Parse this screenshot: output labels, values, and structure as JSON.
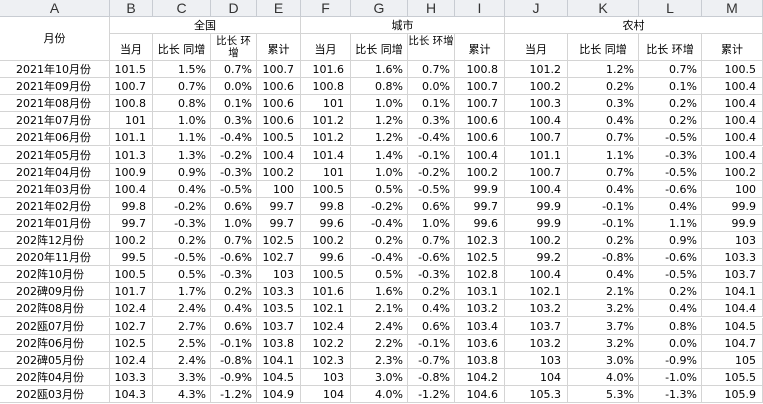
{
  "column_letters": [
    "A",
    "B",
    "C",
    "D",
    "E",
    "F",
    "G",
    "H",
    "I",
    "J",
    "K",
    "L",
    "M"
  ],
  "header": {
    "month": "月份",
    "groups": [
      "全国",
      "城市",
      "农村"
    ],
    "sub": [
      {
        "cur": "当月",
        "yoy": "比长 同增",
        "mom": "比长 环增",
        "cum": "累计"
      },
      {
        "cur": "当月",
        "yoy": "比长 同增",
        "mom": "比长 环增",
        "cum": "累计"
      },
      {
        "cur": "当月",
        "yoy": "比长 同增",
        "mom": "比长 环增",
        "cum": "累计"
      }
    ]
  },
  "rows": [
    [
      "2021年10月份",
      "101.5",
      "1.5%",
      "0.7%",
      "100.7",
      "101.6",
      "1.6%",
      "0.7%",
      "100.8",
      "101.2",
      "1.2%",
      "0.7%",
      "100.5"
    ],
    [
      "2021年09月份",
      "100.7",
      "0.7%",
      "0.0%",
      "100.6",
      "100.8",
      "0.8%",
      "0.0%",
      "100.7",
      "100.2",
      "0.2%",
      "0.1%",
      "100.4"
    ],
    [
      "2021年08月份",
      "100.8",
      "0.8%",
      "0.1%",
      "100.6",
      "101",
      "1.0%",
      "0.1%",
      "100.7",
      "100.3",
      "0.3%",
      "0.2%",
      "100.4"
    ],
    [
      "2021年07月份",
      "101",
      "1.0%",
      "0.3%",
      "100.6",
      "101.2",
      "1.2%",
      "0.3%",
      "100.6",
      "100.4",
      "0.4%",
      "0.2%",
      "100.4"
    ],
    [
      "2021年06月份",
      "101.1",
      "1.1%",
      "-0.4%",
      "100.5",
      "101.2",
      "1.2%",
      "-0.4%",
      "100.6",
      "100.7",
      "0.7%",
      "-0.5%",
      "100.4"
    ],
    [
      "2021年05月份",
      "101.3",
      "1.3%",
      "-0.2%",
      "100.4",
      "101.4",
      "1.4%",
      "-0.1%",
      "100.4",
      "101.1",
      "1.1%",
      "-0.3%",
      "100.4"
    ],
    [
      "2021年04月份",
      "100.9",
      "0.9%",
      "-0.3%",
      "100.2",
      "101",
      "1.0%",
      "-0.2%",
      "100.2",
      "100.7",
      "0.7%",
      "-0.5%",
      "100.2"
    ],
    [
      "2021年03月份",
      "100.4",
      "0.4%",
      "-0.5%",
      "100",
      "100.5",
      "0.5%",
      "-0.5%",
      "99.9",
      "100.4",
      "0.4%",
      "-0.6%",
      "100"
    ],
    [
      "2021年02月份",
      "99.8",
      "-0.2%",
      "0.6%",
      "99.7",
      "99.8",
      "-0.2%",
      "0.6%",
      "99.7",
      "99.9",
      "-0.1%",
      "0.4%",
      "99.9"
    ],
    [
      "2021年01月份",
      "99.7",
      "-0.3%",
      "1.0%",
      "99.7",
      "99.6",
      "-0.4%",
      "1.0%",
      "99.6",
      "99.9",
      "-0.1%",
      "1.1%",
      "99.9"
    ],
    [
      "202阵12月份",
      "100.2",
      "0.2%",
      "0.7%",
      "102.5",
      "100.2",
      "0.2%",
      "0.7%",
      "102.3",
      "100.2",
      "0.2%",
      "0.9%",
      "103"
    ],
    [
      "2020年11月份",
      "99.5",
      "-0.5%",
      "-0.6%",
      "102.7",
      "99.6",
      "-0.4%",
      "-0.6%",
      "102.5",
      "99.2",
      "-0.8%",
      "-0.6%",
      "103.3"
    ],
    [
      "202阵10月份",
      "100.5",
      "0.5%",
      "-0.3%",
      "103",
      "100.5",
      "0.5%",
      "-0.3%",
      "102.8",
      "100.4",
      "0.4%",
      "-0.5%",
      "103.7"
    ],
    [
      "202碑09月份",
      "101.7",
      "1.7%",
      "0.2%",
      "103.3",
      "101.6",
      "1.6%",
      "0.2%",
      "103.1",
      "102.1",
      "2.1%",
      "0.2%",
      "104.1"
    ],
    [
      "202阵08月份",
      "102.4",
      "2.4%",
      "0.4%",
      "103.5",
      "102.1",
      "2.1%",
      "0.4%",
      "103.2",
      "103.2",
      "3.2%",
      "0.4%",
      "104.4"
    ],
    [
      "202瓯07月份",
      "102.7",
      "2.7%",
      "0.6%",
      "103.7",
      "102.4",
      "2.4%",
      "0.6%",
      "103.4",
      "103.7",
      "3.7%",
      "0.8%",
      "104.5"
    ],
    [
      "202阵06月份",
      "102.5",
      "2.5%",
      "-0.1%",
      "103.8",
      "102.2",
      "2.2%",
      "-0.1%",
      "103.6",
      "103.2",
      "3.2%",
      "0.0%",
      "104.7"
    ],
    [
      "202碑05月份",
      "102.4",
      "2.4%",
      "-0.8%",
      "104.1",
      "102.3",
      "2.3%",
      "-0.7%",
      "103.8",
      "103",
      "3.0%",
      "-0.9%",
      "105"
    ],
    [
      "202阵04月份",
      "103.3",
      "3.3%",
      "-0.9%",
      "104.5",
      "103",
      "3.0%",
      "-0.8%",
      "104.2",
      "104",
      "4.0%",
      "-1.0%",
      "105.5"
    ],
    [
      "202瓯03月份",
      "104.3",
      "4.3%",
      "-1.2%",
      "104.9",
      "104",
      "4.0%",
      "-1.2%",
      "104.6",
      "105.3",
      "5.3%",
      "-1.3%",
      "105.9"
    ]
  ]
}
